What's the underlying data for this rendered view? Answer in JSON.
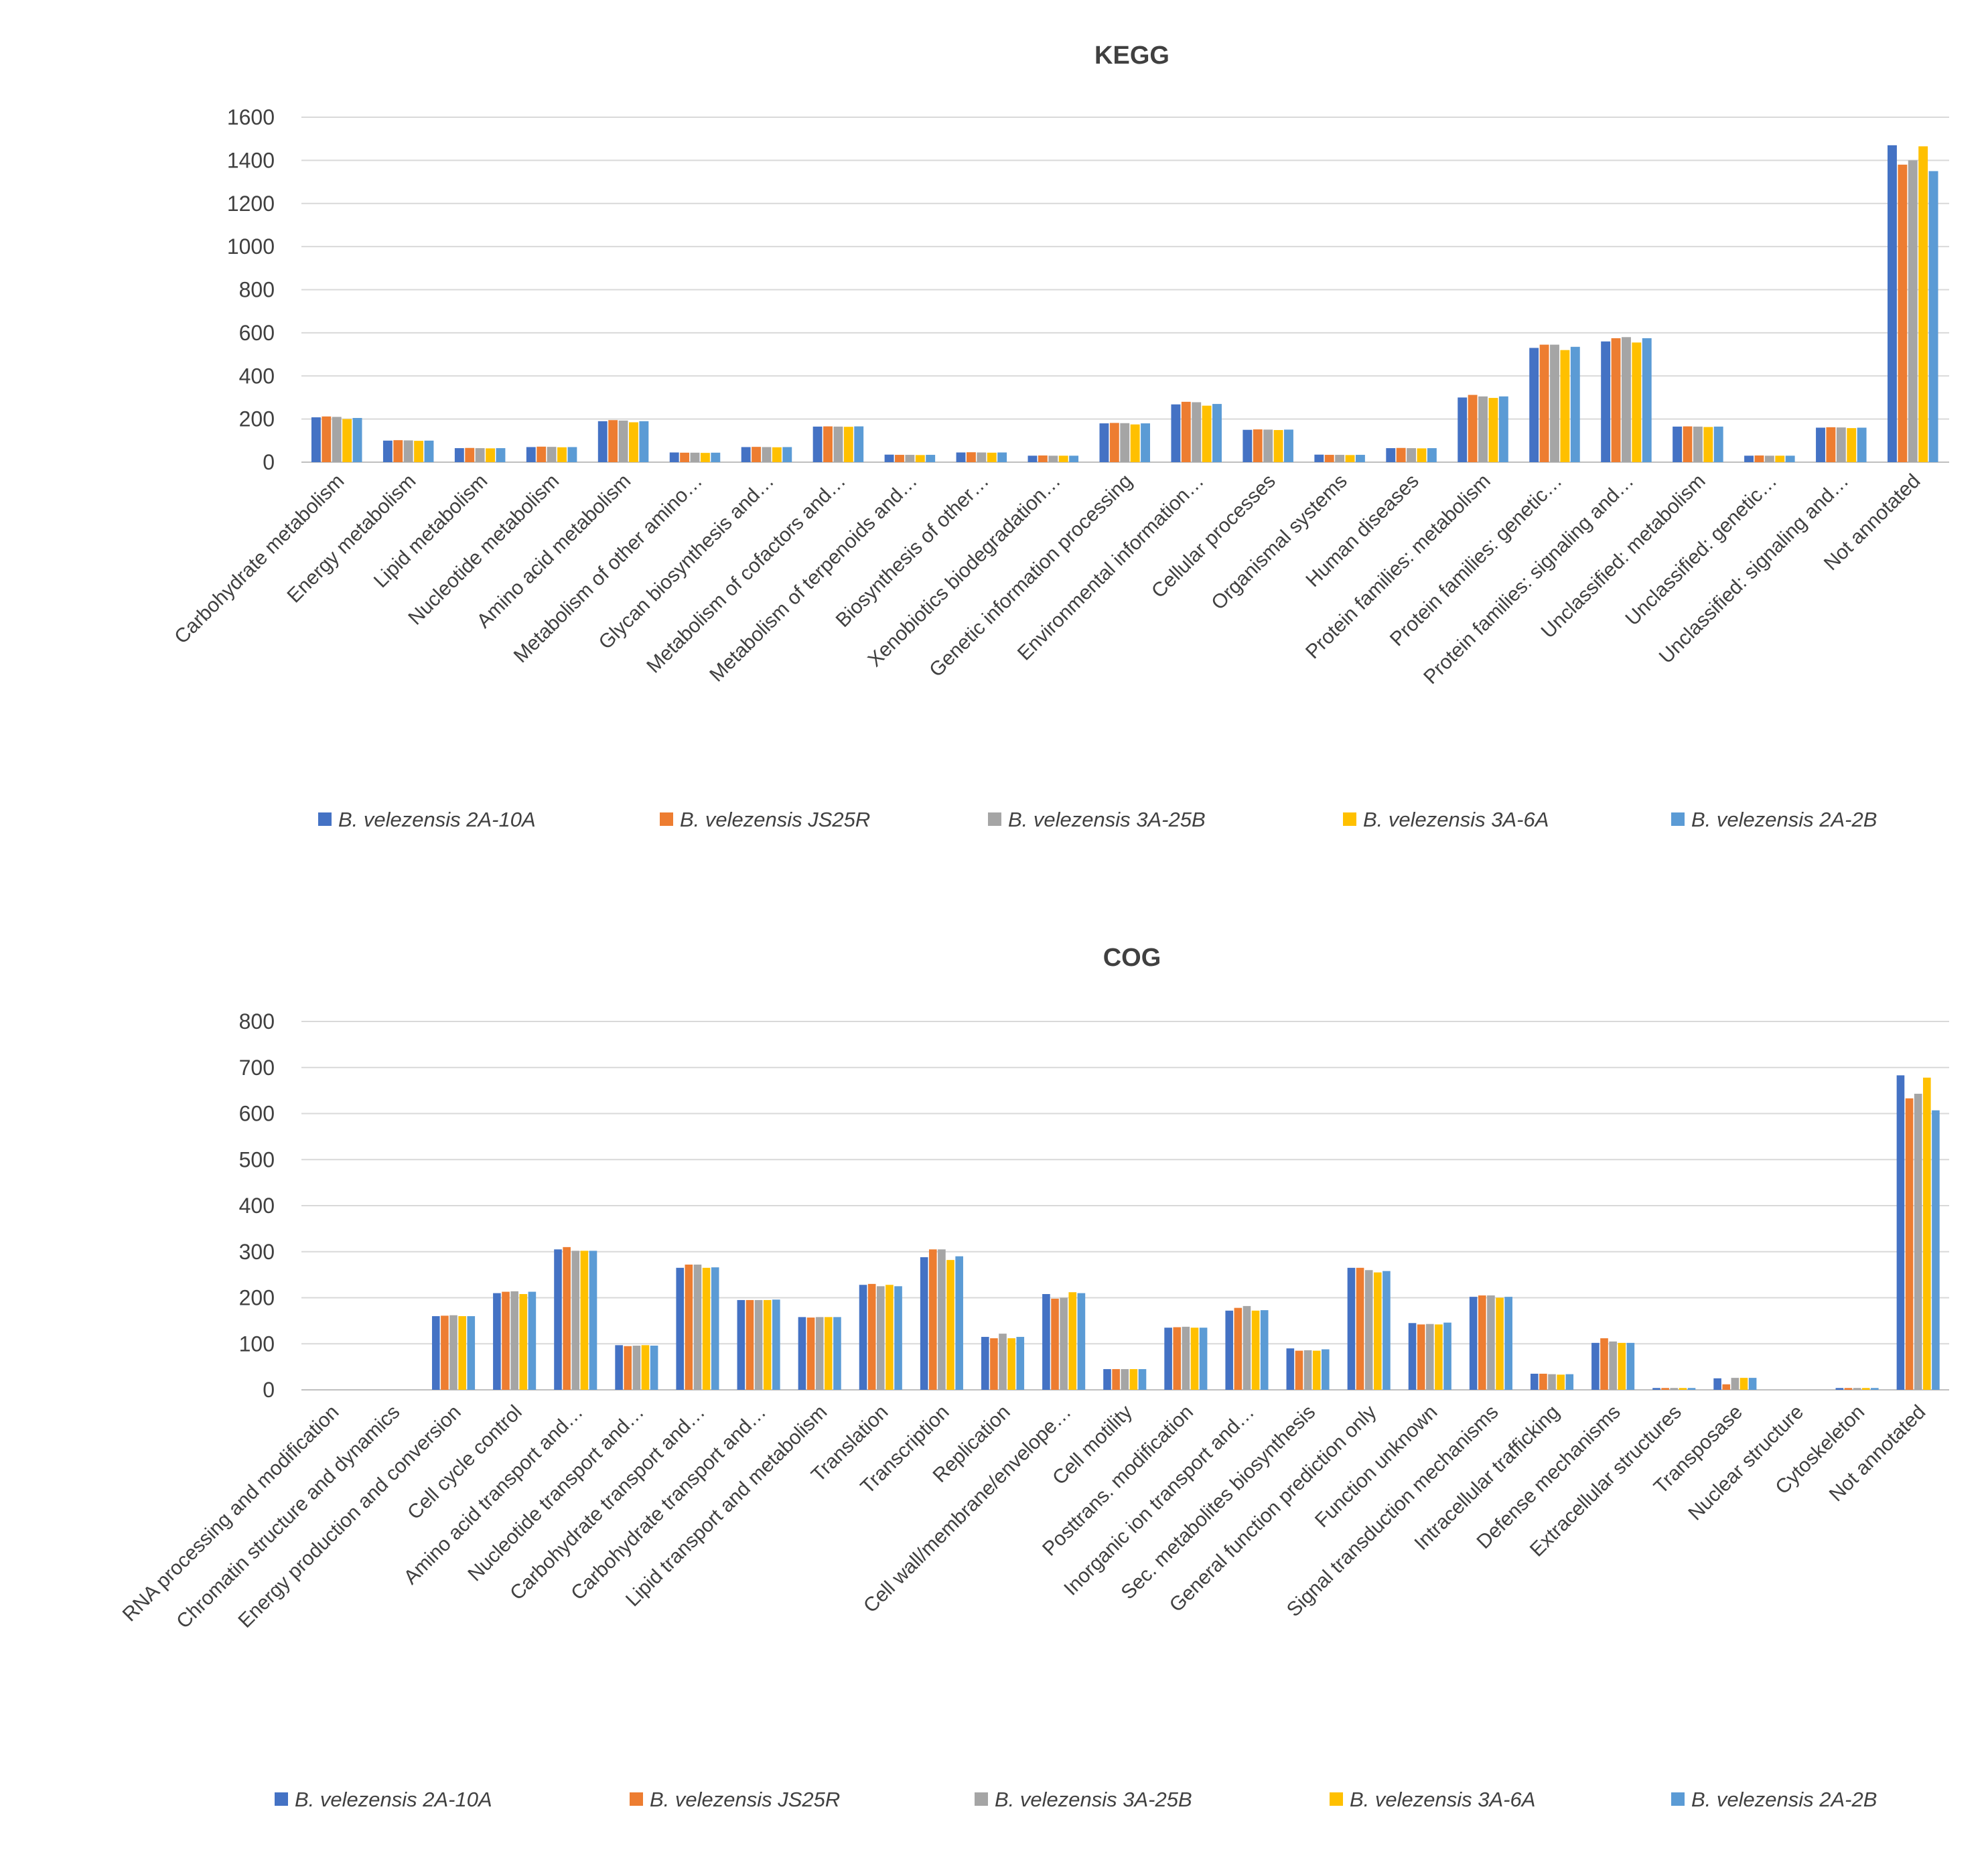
{
  "series_names": [
    "B. velezensis 2A-10A",
    "B. velezensis JS25R",
    "B. velezensis 3A-25B",
    "B. velezensis 3A-6A",
    "B. velezensis 2A-2B"
  ],
  "colors": [
    "#4472c4",
    "#ed7d31",
    "#a5a5a5",
    "#ffc000",
    "#5b9bd5"
  ],
  "chart_data": [
    {
      "type": "bar",
      "title": "KEGG",
      "ylim": [
        0,
        1600
      ],
      "yticks": [
        "0",
        "200",
        "400",
        "600",
        "800",
        "1000",
        "1200",
        "1400",
        "1600"
      ],
      "grid": true,
      "legend": "bottom",
      "categories": [
        "Carbohydrate metabolism",
        "Energy metabolism",
        "Lipid metabolism",
        "Nucleotide metabolism",
        "Amino acid metabolism",
        "Metabolism of other amino…",
        "Glycan biosynthesis and…",
        "Metabolism of cofactors and…",
        "Metabolism of terpenoids and…",
        "Biosynthesis of other…",
        "Xenobiotics biodegradation…",
        "Genetic information processing",
        "Environmental information…",
        "Cellular processes",
        "Organismal systems",
        "Human diseases",
        "Protein families: metabolism",
        "Protein families: genetic…",
        "Protein families: signaling and…",
        "Unclassified: metabolism",
        "Unclassified: genetic…",
        "Unclassified: signaling and…",
        "Not annotated"
      ],
      "series": [
        {
          "name": "B. velezensis 2A-10A",
          "values": [
            208,
            100,
            65,
            70,
            190,
            45,
            70,
            165,
            35,
            45,
            30,
            180,
            268,
            150,
            35,
            65,
            300,
            530,
            560,
            165,
            30,
            160,
            1470
          ]
        },
        {
          "name": "B. velezensis JS25R",
          "values": [
            212,
            102,
            66,
            72,
            195,
            44,
            71,
            166,
            34,
            46,
            31,
            182,
            280,
            152,
            34,
            66,
            312,
            545,
            575,
            166,
            31,
            162,
            1380
          ]
        },
        {
          "name": "B. velezensis 3A-25B",
          "values": [
            210,
            101,
            65,
            71,
            193,
            44,
            70,
            165,
            34,
            45,
            30,
            181,
            278,
            151,
            34,
            65,
            305,
            545,
            580,
            165,
            30,
            161,
            1400
          ]
        },
        {
          "name": "B. velezensis 3A-6A",
          "values": [
            200,
            99,
            64,
            69,
            185,
            43,
            69,
            164,
            33,
            44,
            30,
            175,
            262,
            149,
            33,
            64,
            298,
            520,
            555,
            163,
            30,
            158,
            1465
          ]
        },
        {
          "name": "B. velezensis 2A-2B",
          "values": [
            205,
            100,
            65,
            70,
            190,
            44,
            70,
            166,
            34,
            45,
            30,
            180,
            270,
            151,
            34,
            65,
            305,
            535,
            575,
            165,
            30,
            160,
            1350
          ]
        }
      ]
    },
    {
      "type": "bar",
      "title": "COG",
      "ylim": [
        0,
        800
      ],
      "yticks": [
        "0",
        "100",
        "200",
        "300",
        "400",
        "500",
        "600",
        "700",
        "800"
      ],
      "grid": true,
      "legend": "bottom",
      "categories": [
        "RNA processing and modification",
        "Chromatin structure and dynamics",
        "Energy production and conversion",
        "Cell cycle control",
        "Amino acid transport and…",
        "Nucleotide transport and…",
        "Carbohydrate transport and…",
        "Carbohydrate transport and…",
        "Lipid transport and metabolism",
        "Translation",
        "Transcription",
        "Replication",
        "Cell wall/membrane/envelope…",
        "Cell motility",
        "Posttrans. modification",
        "Inorganic ion transport and…",
        "Sec. metabolites biosynthesis",
        "General function prediction only",
        "Function unknown",
        "Signal transduction mechanisms",
        "Intracellular trafficking",
        "Defense mechanisms",
        "Extracellular structures",
        "Transposase",
        "Nuclear structure",
        "Cytoskeleton",
        "Not annotated"
      ],
      "series": [
        {
          "name": "B. velezensis 2A-10A",
          "values": [
            0,
            0,
            160,
            210,
            305,
            97,
            265,
            195,
            158,
            228,
            288,
            115,
            208,
            45,
            135,
            172,
            90,
            265,
            145,
            202,
            35,
            102,
            4,
            25,
            0,
            4,
            683
          ]
        },
        {
          "name": "B. velezensis JS25R",
          "values": [
            0,
            0,
            161,
            213,
            310,
            95,
            272,
            195,
            157,
            230,
            305,
            112,
            198,
            45,
            136,
            178,
            85,
            265,
            142,
            205,
            35,
            112,
            4,
            12,
            0,
            4,
            633
          ]
        },
        {
          "name": "B. velezensis 3A-25B",
          "values": [
            0,
            0,
            162,
            214,
            302,
            96,
            272,
            195,
            158,
            225,
            305,
            122,
            200,
            45,
            137,
            182,
            86,
            260,
            143,
            205,
            34,
            105,
            4,
            26,
            0,
            4,
            643
          ]
        },
        {
          "name": "B. velezensis 3A-6A",
          "values": [
            0,
            0,
            160,
            208,
            302,
            97,
            265,
            195,
            158,
            228,
            282,
            112,
            212,
            45,
            135,
            172,
            85,
            255,
            142,
            200,
            33,
            102,
            4,
            26,
            0,
            4,
            678
          ]
        },
        {
          "name": "B. velezensis 2A-2B",
          "values": [
            0,
            0,
            160,
            213,
            302,
            96,
            266,
            196,
            158,
            225,
            290,
            115,
            210,
            45,
            135,
            173,
            88,
            258,
            146,
            202,
            34,
            102,
            4,
            26,
            0,
            4,
            607
          ]
        }
      ]
    }
  ]
}
